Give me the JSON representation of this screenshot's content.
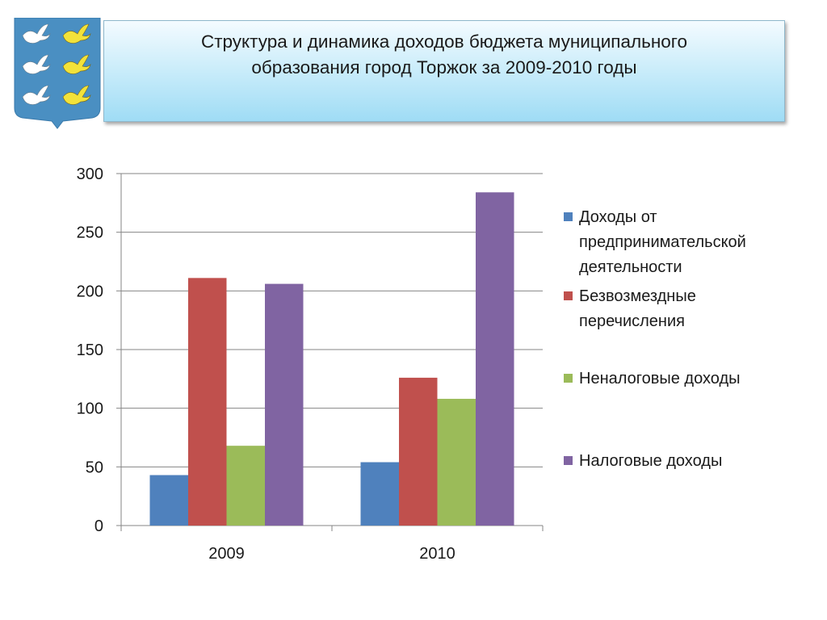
{
  "slide": {
    "title": "Структура и динамика доходов бюджета муниципального\nобразования город Торжок за 2009-2010 годы",
    "emblem_icon": "coat-of-arms-doves-icon"
  },
  "chart_data": {
    "type": "bar",
    "categories": [
      "2009",
      "2010"
    ],
    "series": [
      {
        "name": "Доходы от предпринимательской деятельности",
        "values": [
          43,
          54
        ],
        "color": "#4f81bd"
      },
      {
        "name": "Безвозмездные перечисления",
        "values": [
          211,
          126
        ],
        "color": "#c0504d"
      },
      {
        "name": "Неналоговые доходы",
        "values": [
          68,
          108
        ],
        "color": "#9bbb59"
      },
      {
        "name": "Налоговые доходы",
        "values": [
          206,
          284
        ],
        "color": "#8064a2"
      }
    ],
    "ylim": [
      0,
      300
    ],
    "yticks": [
      0,
      50,
      100,
      150,
      200,
      250,
      300
    ],
    "grid": true,
    "legend_position": "right"
  }
}
